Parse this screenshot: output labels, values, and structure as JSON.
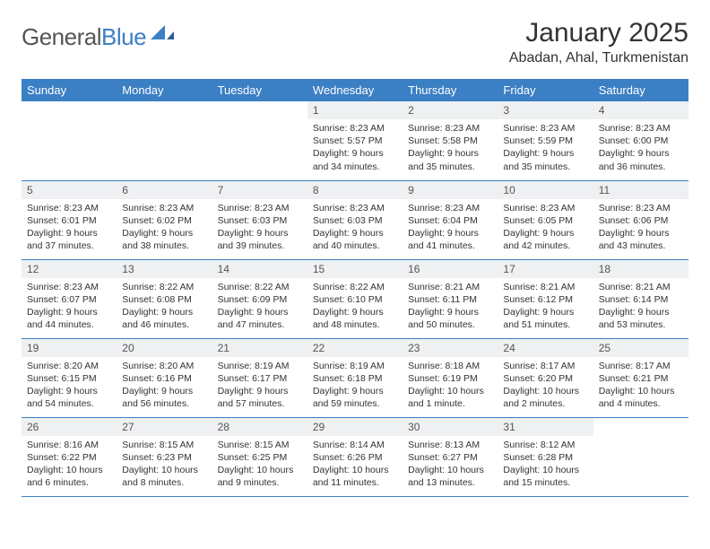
{
  "logo": {
    "word1": "General",
    "word2": "Blue"
  },
  "title": "January 2025",
  "location": "Abadan, Ahal, Turkmenistan",
  "colors": {
    "brand_blue": "#3b7fc4",
    "header_bg": "#3b7fc4",
    "header_text": "#ffffff",
    "daynum_bg": "#eef0f2",
    "row_border": "#3b7fc4",
    "text": "#333333"
  },
  "day_headers": [
    "Sunday",
    "Monday",
    "Tuesday",
    "Wednesday",
    "Thursday",
    "Friday",
    "Saturday"
  ],
  "weeks": [
    [
      {
        "n": "",
        "sr": "",
        "ss": "",
        "dl": "",
        "empty": true
      },
      {
        "n": "",
        "sr": "",
        "ss": "",
        "dl": "",
        "empty": true
      },
      {
        "n": "",
        "sr": "",
        "ss": "",
        "dl": "",
        "empty": true
      },
      {
        "n": "1",
        "sr": "Sunrise: 8:23 AM",
        "ss": "Sunset: 5:57 PM",
        "dl": "Daylight: 9 hours and 34 minutes."
      },
      {
        "n": "2",
        "sr": "Sunrise: 8:23 AM",
        "ss": "Sunset: 5:58 PM",
        "dl": "Daylight: 9 hours and 35 minutes."
      },
      {
        "n": "3",
        "sr": "Sunrise: 8:23 AM",
        "ss": "Sunset: 5:59 PM",
        "dl": "Daylight: 9 hours and 35 minutes."
      },
      {
        "n": "4",
        "sr": "Sunrise: 8:23 AM",
        "ss": "Sunset: 6:00 PM",
        "dl": "Daylight: 9 hours and 36 minutes."
      }
    ],
    [
      {
        "n": "5",
        "sr": "Sunrise: 8:23 AM",
        "ss": "Sunset: 6:01 PM",
        "dl": "Daylight: 9 hours and 37 minutes."
      },
      {
        "n": "6",
        "sr": "Sunrise: 8:23 AM",
        "ss": "Sunset: 6:02 PM",
        "dl": "Daylight: 9 hours and 38 minutes."
      },
      {
        "n": "7",
        "sr": "Sunrise: 8:23 AM",
        "ss": "Sunset: 6:03 PM",
        "dl": "Daylight: 9 hours and 39 minutes."
      },
      {
        "n": "8",
        "sr": "Sunrise: 8:23 AM",
        "ss": "Sunset: 6:03 PM",
        "dl": "Daylight: 9 hours and 40 minutes."
      },
      {
        "n": "9",
        "sr": "Sunrise: 8:23 AM",
        "ss": "Sunset: 6:04 PM",
        "dl": "Daylight: 9 hours and 41 minutes."
      },
      {
        "n": "10",
        "sr": "Sunrise: 8:23 AM",
        "ss": "Sunset: 6:05 PM",
        "dl": "Daylight: 9 hours and 42 minutes."
      },
      {
        "n": "11",
        "sr": "Sunrise: 8:23 AM",
        "ss": "Sunset: 6:06 PM",
        "dl": "Daylight: 9 hours and 43 minutes."
      }
    ],
    [
      {
        "n": "12",
        "sr": "Sunrise: 8:23 AM",
        "ss": "Sunset: 6:07 PM",
        "dl": "Daylight: 9 hours and 44 minutes."
      },
      {
        "n": "13",
        "sr": "Sunrise: 8:22 AM",
        "ss": "Sunset: 6:08 PM",
        "dl": "Daylight: 9 hours and 46 minutes."
      },
      {
        "n": "14",
        "sr": "Sunrise: 8:22 AM",
        "ss": "Sunset: 6:09 PM",
        "dl": "Daylight: 9 hours and 47 minutes."
      },
      {
        "n": "15",
        "sr": "Sunrise: 8:22 AM",
        "ss": "Sunset: 6:10 PM",
        "dl": "Daylight: 9 hours and 48 minutes."
      },
      {
        "n": "16",
        "sr": "Sunrise: 8:21 AM",
        "ss": "Sunset: 6:11 PM",
        "dl": "Daylight: 9 hours and 50 minutes."
      },
      {
        "n": "17",
        "sr": "Sunrise: 8:21 AM",
        "ss": "Sunset: 6:12 PM",
        "dl": "Daylight: 9 hours and 51 minutes."
      },
      {
        "n": "18",
        "sr": "Sunrise: 8:21 AM",
        "ss": "Sunset: 6:14 PM",
        "dl": "Daylight: 9 hours and 53 minutes."
      }
    ],
    [
      {
        "n": "19",
        "sr": "Sunrise: 8:20 AM",
        "ss": "Sunset: 6:15 PM",
        "dl": "Daylight: 9 hours and 54 minutes."
      },
      {
        "n": "20",
        "sr": "Sunrise: 8:20 AM",
        "ss": "Sunset: 6:16 PM",
        "dl": "Daylight: 9 hours and 56 minutes."
      },
      {
        "n": "21",
        "sr": "Sunrise: 8:19 AM",
        "ss": "Sunset: 6:17 PM",
        "dl": "Daylight: 9 hours and 57 minutes."
      },
      {
        "n": "22",
        "sr": "Sunrise: 8:19 AM",
        "ss": "Sunset: 6:18 PM",
        "dl": "Daylight: 9 hours and 59 minutes."
      },
      {
        "n": "23",
        "sr": "Sunrise: 8:18 AM",
        "ss": "Sunset: 6:19 PM",
        "dl": "Daylight: 10 hours and 1 minute."
      },
      {
        "n": "24",
        "sr": "Sunrise: 8:17 AM",
        "ss": "Sunset: 6:20 PM",
        "dl": "Daylight: 10 hours and 2 minutes."
      },
      {
        "n": "25",
        "sr": "Sunrise: 8:17 AM",
        "ss": "Sunset: 6:21 PM",
        "dl": "Daylight: 10 hours and 4 minutes."
      }
    ],
    [
      {
        "n": "26",
        "sr": "Sunrise: 8:16 AM",
        "ss": "Sunset: 6:22 PM",
        "dl": "Daylight: 10 hours and 6 minutes."
      },
      {
        "n": "27",
        "sr": "Sunrise: 8:15 AM",
        "ss": "Sunset: 6:23 PM",
        "dl": "Daylight: 10 hours and 8 minutes."
      },
      {
        "n": "28",
        "sr": "Sunrise: 8:15 AM",
        "ss": "Sunset: 6:25 PM",
        "dl": "Daylight: 10 hours and 9 minutes."
      },
      {
        "n": "29",
        "sr": "Sunrise: 8:14 AM",
        "ss": "Sunset: 6:26 PM",
        "dl": "Daylight: 10 hours and 11 minutes."
      },
      {
        "n": "30",
        "sr": "Sunrise: 8:13 AM",
        "ss": "Sunset: 6:27 PM",
        "dl": "Daylight: 10 hours and 13 minutes."
      },
      {
        "n": "31",
        "sr": "Sunrise: 8:12 AM",
        "ss": "Sunset: 6:28 PM",
        "dl": "Daylight: 10 hours and 15 minutes."
      },
      {
        "n": "",
        "sr": "",
        "ss": "",
        "dl": "",
        "empty": true
      }
    ]
  ]
}
